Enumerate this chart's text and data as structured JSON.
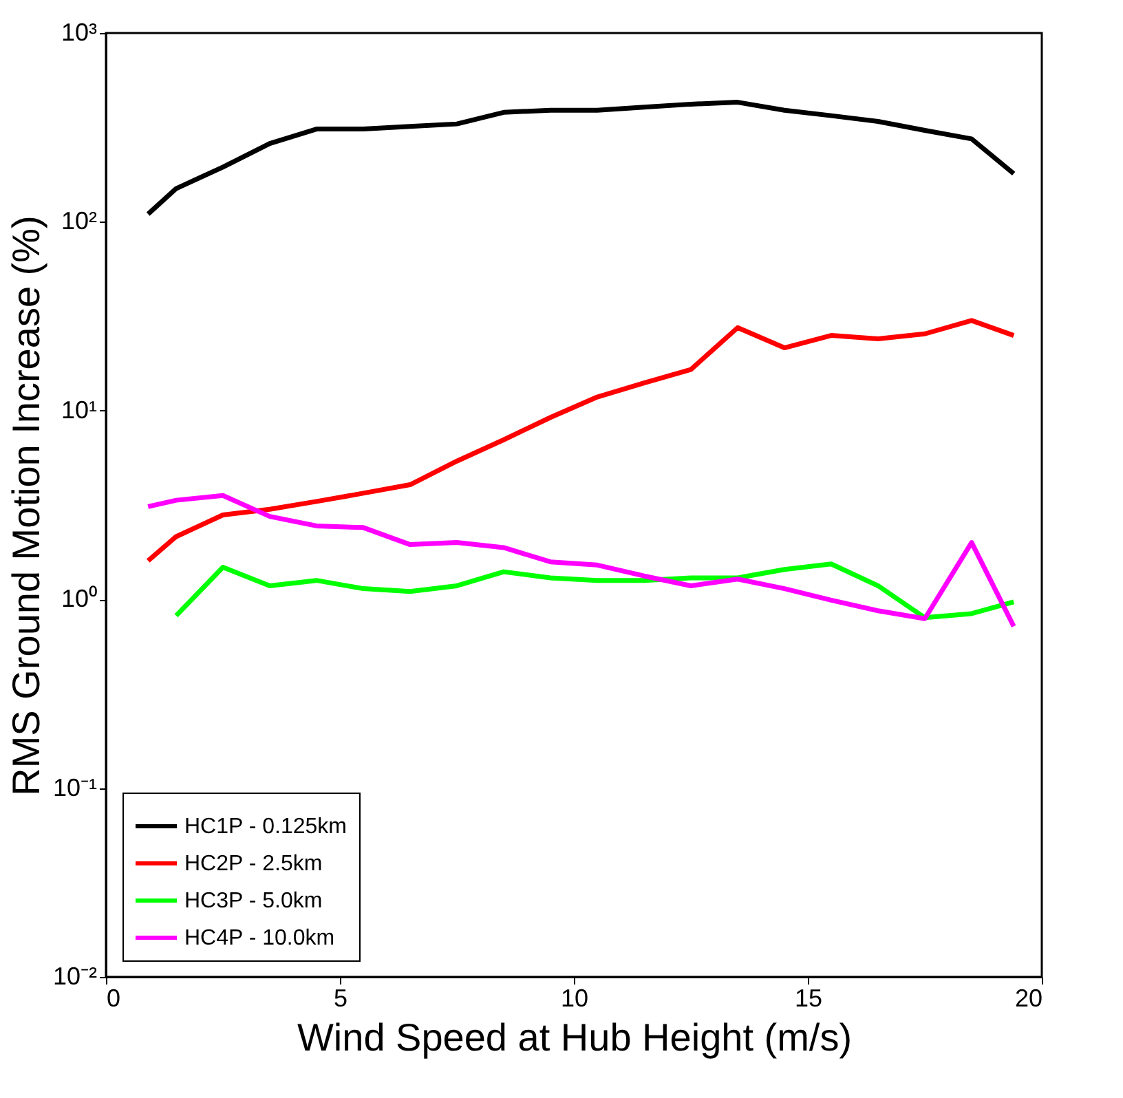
{
  "chart_data": {
    "type": "line",
    "xlabel": "Wind Speed at Hub Height (m/s)",
    "ylabel": "RMS Ground Motion Increase (%)",
    "log": "y",
    "grid": false,
    "legend": "bottom left",
    "marker": "none",
    "line_style": "solid",
    "xlim": [
      0,
      20
    ],
    "xticks": [
      0,
      5,
      10,
      15,
      20
    ],
    "ylim": [
      0.01,
      1000
    ],
    "yticks": [
      {
        "value": 0.01,
        "label": "10⁻²"
      },
      {
        "value": 0.1,
        "label": "10⁻¹"
      },
      {
        "value": 1,
        "label": "10⁰"
      },
      {
        "value": 10,
        "label": "10¹"
      },
      {
        "value": 100,
        "label": "10²"
      },
      {
        "value": 1000,
        "label": "10³"
      }
    ],
    "x": [
      0.9,
      1.5,
      2.5,
      3.5,
      4.5,
      5.5,
      6.5,
      7.5,
      8.5,
      9.5,
      10.5,
      11.5,
      12.5,
      13.5,
      14.5,
      15.5,
      16.5,
      17.5,
      18.5,
      19.4
    ],
    "series": [
      {
        "name": "HC1P - 0.125km",
        "color": "#000000",
        "values": [
          110,
          150,
          195,
          260,
          310,
          310,
          320,
          330,
          380,
          390,
          390,
          405,
          420,
          430,
          390,
          365,
          340,
          305,
          275,
          180
        ]
      },
      {
        "name": "HC2P - 2.5km",
        "color": "#ff0000",
        "values": [
          1.6,
          2.15,
          2.8,
          3.0,
          3.3,
          3.65,
          4.05,
          5.4,
          7.0,
          9.2,
          11.8,
          14,
          16.5,
          27.5,
          21.5,
          25,
          24,
          25.5,
          30,
          25
        ]
      },
      {
        "name": "HC3P - 5.0km",
        "color": "#00ff00",
        "values": [
          null,
          0.82,
          1.48,
          1.18,
          1.26,
          1.14,
          1.1,
          1.18,
          1.4,
          1.3,
          1.26,
          1.26,
          1.3,
          1.3,
          1.44,
          1.54,
          1.18,
          0.8,
          0.84,
          0.97
        ]
      },
      {
        "name": "HC4P - 10.0km",
        "color": "#ff00ff",
        "values": [
          3.1,
          3.35,
          3.55,
          2.75,
          2.45,
          2.4,
          1.95,
          2.0,
          1.88,
          1.58,
          1.52,
          1.33,
          1.18,
          1.28,
          1.14,
          0.99,
          0.87,
          0.79,
          2.0,
          0.72
        ]
      }
    ]
  }
}
